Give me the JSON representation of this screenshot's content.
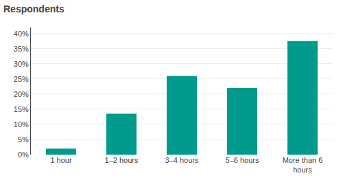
{
  "chart_data": {
    "type": "bar",
    "title": "Respondents",
    "categories": [
      "1 hour",
      "1–2 hours",
      "3–4 hours",
      "5–6 hours",
      "More than 6\nhours"
    ],
    "values": [
      2.0,
      13.5,
      26.0,
      22.0,
      37.5
    ],
    "color": "#009B8D",
    "ylim": [
      0,
      42
    ],
    "yticks": [
      {
        "value": 0,
        "label": "0%"
      },
      {
        "value": 5,
        "label": "5%"
      },
      {
        "value": 10,
        "label": "10%"
      },
      {
        "value": 15,
        "label": "15%"
      },
      {
        "value": 20,
        "label": "20%"
      },
      {
        "value": 25,
        "label": "25%"
      },
      {
        "value": 30,
        "label": "30%"
      },
      {
        "value": 35,
        "label": "35%"
      },
      {
        "value": 40,
        "label": "40%"
      }
    ],
    "grid": true
  }
}
